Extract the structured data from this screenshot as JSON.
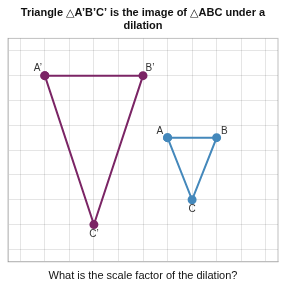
{
  "chart_data": {
    "type": "scatter",
    "title": "Triangle △A’B’C’ is the image of △ABC under a dilation",
    "subtitle": "What is the scale factor of the dilation?",
    "series": [
      {
        "x": [
          -4,
          0,
          -2
        ],
        "values": [
          3,
          3,
          -3
        ],
        "labels": [
          "A’",
          "B’",
          "C’"
        ],
        "color": "#7b2565"
      },
      {
        "x": [
          1,
          3,
          2
        ],
        "values": [
          0.5,
          0.5,
          -2
        ],
        "labels": [
          "A",
          "B",
          "C"
        ],
        "color": "#4488bb"
      }
    ],
    "xlim": [
      -5.5,
      5.5
    ],
    "ylim": [
      -4.5,
      4.5
    ],
    "xticks": [
      -5,
      -4,
      -3,
      -2,
      -1,
      0,
      1,
      2,
      3,
      4,
      5
    ],
    "yticks": [
      -4,
      -3,
      -2,
      -1,
      0,
      1,
      2,
      3,
      4
    ],
    "grid": true,
    "tick_labels": false
  }
}
